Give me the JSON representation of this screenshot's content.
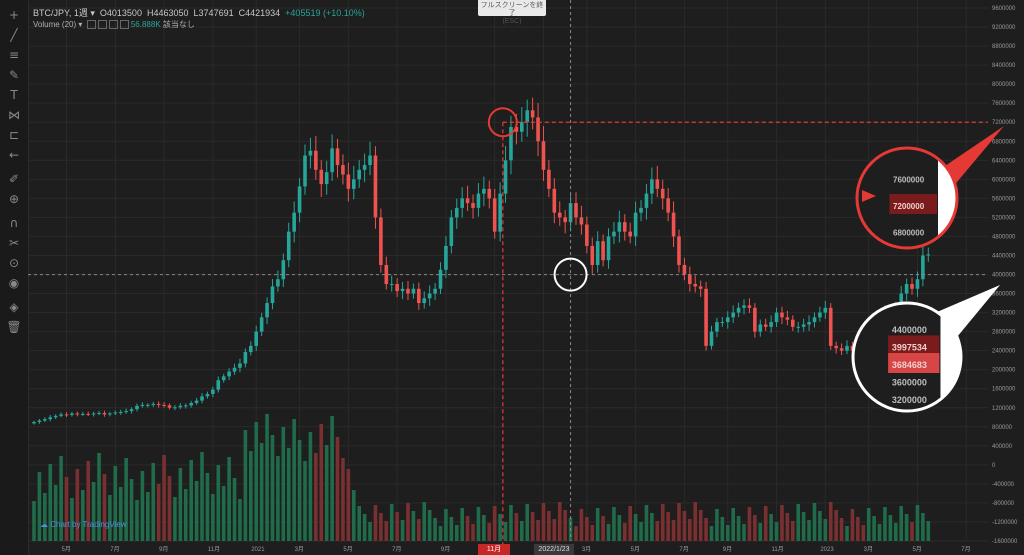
{
  "legend": {
    "symbol": "BTC/JPY, 1週",
    "open_label": "O",
    "open": "4013500",
    "high_label": "H",
    "high": "4463050",
    "low_label": "L",
    "low": "3747691",
    "close_label": "C",
    "close": "4421934",
    "change": "+405519 (+10.10%)"
  },
  "volume_legend": {
    "label": "Volume (20)",
    "value": "56.888K",
    "extra": "該当なし"
  },
  "fullscreen_tooltip": {
    "line1": "フルスクリーンを終了",
    "line2": "(ESC)"
  },
  "branding": "Chart by TradingView",
  "crosshair_date": "2022/1/23",
  "highlight_date": "11月",
  "price_tags": {
    "crosshair": "3997534",
    "last": "3684683",
    "marker": "7200000"
  },
  "zoom_top": {
    "labels": [
      "7600000",
      "7200000",
      "6800000"
    ]
  },
  "zoom_bottom": {
    "labels": [
      "4400000",
      "3997534",
      "3684683",
      "3600000",
      "3200000"
    ]
  },
  "toolbar_icons": [
    "crosshair-icon",
    "trend-line-icon",
    "fib-icon",
    "brush-icon",
    "text-icon",
    "pattern-icon",
    "ruler-icon",
    "back-arrow-icon",
    "pencil-icon",
    "zoom-icon",
    "magnet-icon",
    "lock-draw-icon",
    "lock-icon",
    "eye-icon",
    "layers-icon",
    "trash-icon"
  ],
  "colors": {
    "up": "#26a69a",
    "down": "#ef5350",
    "up_vol": "#1f6b4a",
    "down_vol": "#7a3030",
    "accent": "#e53935"
  },
  "chart_data": {
    "type": "candlestick",
    "symbol": "BTC/JPY",
    "interval": "1週",
    "price_axis": [
      "9600000",
      "9200000",
      "8800000",
      "8400000",
      "8000000",
      "7600000",
      "7200000",
      "6800000",
      "6400000",
      "6000000",
      "5600000",
      "5200000",
      "4800000",
      "4400000",
      "4000000",
      "3600000",
      "3200000",
      "2800000",
      "2400000",
      "2000000",
      "1600000",
      "1200000",
      "800000",
      "400000",
      "0",
      "-400000",
      "-800000",
      "-1200000",
      "-1600000"
    ],
    "ylim": [
      -1600000,
      9600000
    ],
    "x_labels": [
      {
        "label": "5月",
        "i": 6
      },
      {
        "label": "7月",
        "i": 15
      },
      {
        "label": "9月",
        "i": 24
      },
      {
        "label": "11月",
        "i": 33
      },
      {
        "label": "2021",
        "i": 41
      },
      {
        "label": "3月",
        "i": 49
      },
      {
        "label": "5月",
        "i": 58
      },
      {
        "label": "7月",
        "i": 67
      },
      {
        "label": "9月",
        "i": 76
      },
      {
        "label": "11月",
        "i": 85
      },
      {
        "label": "2022",
        "i": 94
      },
      {
        "label": "3月",
        "i": 102
      },
      {
        "label": "5月",
        "i": 111
      },
      {
        "label": "7月",
        "i": 120
      },
      {
        "label": "9月",
        "i": 128
      },
      {
        "label": "11月",
        "i": 137
      },
      {
        "label": "2023",
        "i": 146
      },
      {
        "label": "3月",
        "i": 154
      },
      {
        "label": "5月",
        "i": 163
      },
      {
        "label": "7月",
        "i": 172
      }
    ],
    "closes": [
      900000,
      930000,
      960000,
      1000000,
      1030000,
      1060000,
      1050000,
      1080000,
      1070000,
      1070000,
      1060000,
      1080000,
      1090000,
      1060000,
      1080000,
      1100000,
      1110000,
      1130000,
      1170000,
      1240000,
      1260000,
      1260000,
      1280000,
      1260000,
      1250000,
      1200000,
      1210000,
      1240000,
      1250000,
      1300000,
      1350000,
      1440000,
      1490000,
      1580000,
      1780000,
      1860000,
      1960000,
      2040000,
      2130000,
      2370000,
      2500000,
      2800000,
      3100000,
      3400000,
      3750000,
      3900000,
      4300000,
      4900000,
      5300000,
      5850000,
      6500000,
      6600000,
      6200000,
      5900000,
      6150000,
      6650000,
      6300000,
      6100000,
      5800000,
      6000000,
      6200000,
      6300000,
      6500000,
      5200000,
      4200000,
      3800000,
      3800000,
      3650000,
      3700000,
      3600000,
      3700000,
      3400000,
      3500000,
      3600000,
      3700000,
      4100000,
      4600000,
      5200000,
      5400000,
      5600000,
      5500000,
      5400000,
      5700000,
      5800000,
      5600000,
      4900000,
      5700000,
      6400000,
      7100000,
      7000000,
      7200000,
      7450000,
      7300000,
      6800000,
      6200000,
      5800000,
      5300000,
      5200000,
      5100000,
      5500000,
      5200000,
      5050000,
      4600000,
      4200000,
      4700000,
      4300000,
      4800000,
      4900000,
      5100000,
      4900000,
      4800000,
      5300000,
      5400000,
      5700000,
      6000000,
      5800000,
      5600000,
      5300000,
      4800000,
      4200000,
      4000000,
      3800000,
      3750000,
      3700000,
      2500000,
      2800000,
      3000000,
      3000000,
      3100000,
      3200000,
      3300000,
      3350000,
      3300000,
      2800000,
      2950000,
      2900000,
      3000000,
      3200000,
      3100000,
      3050000,
      2900000,
      2900000,
      2950000,
      3000000,
      3100000,
      3200000,
      3300000,
      2500000,
      2450000,
      2400000,
      2500000,
      2400000,
      2300000,
      2250000,
      2250000,
      2400000,
      2850000,
      3200000,
      3250000,
      3300000,
      3600000,
      3800000,
      3700000,
      3900000,
      4400000,
      4421934
    ]
  }
}
